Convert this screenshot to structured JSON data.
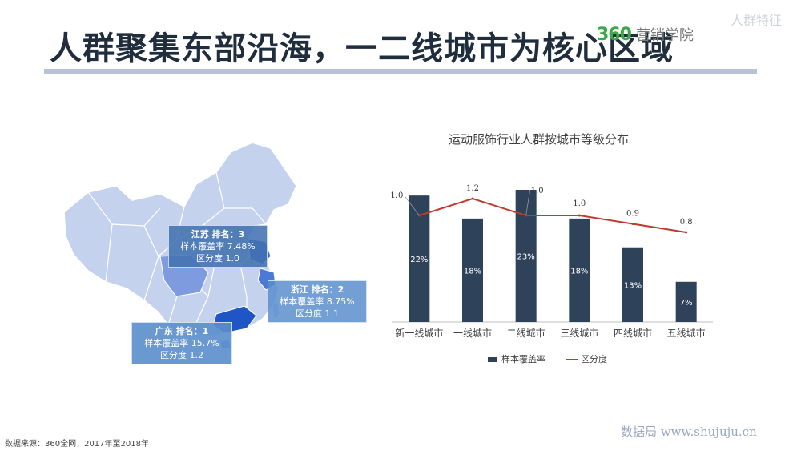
{
  "title": "人群聚集东部沿海，一二线城市为核心区域",
  "brand": {
    "logo": "360",
    "name": "营销学院"
  },
  "section_tag": "人群特征",
  "map_callouts": [
    {
      "province": "江苏",
      "rank_label": "排名：3",
      "coverage": "样本覆盖率 7.48%",
      "index": "区分度 1.0"
    },
    {
      "province": "浙江",
      "rank_label": "排名：2",
      "coverage": "样本覆盖率 8.75%",
      "index": "区分度 1.1"
    },
    {
      "province": "广东",
      "rank_label": "排名：1",
      "coverage": "样本覆盖率 15.7%",
      "index": "区分度 1.2"
    }
  ],
  "chart_data": {
    "type": "bar",
    "title": "运动服饰行业人群按城市等级分布",
    "categories": [
      "新一线城市",
      "一线城市",
      "二线城市",
      "三线城市",
      "四线城市",
      "五线城市"
    ],
    "series": [
      {
        "name": "样本覆盖率",
        "kind": "bar",
        "values": [
          22,
          18,
          23,
          18,
          13,
          7
        ],
        "labels": [
          "22%",
          "18%",
          "23%",
          "18%",
          "13%",
          "7%"
        ],
        "color": "#2e4259"
      },
      {
        "name": "区分度",
        "kind": "line",
        "values": [
          1.0,
          1.2,
          1.0,
          1.0,
          0.9,
          0.8
        ],
        "labels": [
          "1.0",
          "1.2",
          "1.0",
          "1.0",
          "0.9",
          "0.8"
        ],
        "color": "#c0392b"
      }
    ],
    "legend": "bottom",
    "grid": false
  },
  "source": "数据来源：360全网，2017年至2018年",
  "watermark": "数据局 www.shujuju.cn"
}
